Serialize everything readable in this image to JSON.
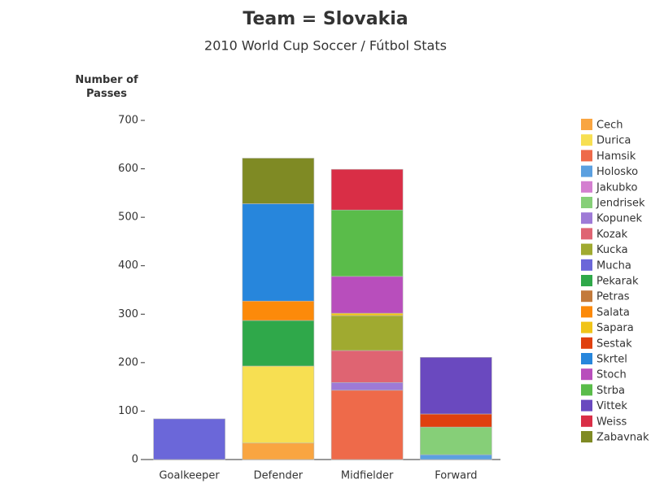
{
  "chart_data": {
    "type": "stacked-bar",
    "title": "Team = Slovakia",
    "subtitle": "2010 World Cup Soccer / Fútbol Stats",
    "y_label": "Number of Passes",
    "categories": [
      "Goalkeeper",
      "Defender",
      "Midfielder",
      "Forward"
    ],
    "ylim": [
      0,
      700
    ],
    "yticks": [
      0,
      100,
      200,
      300,
      400,
      500,
      600,
      700
    ],
    "legend": "right",
    "series": [
      {
        "name": "Cech",
        "color": "#f9a541",
        "values": [
          null,
          34,
          null,
          null
        ]
      },
      {
        "name": "Durica",
        "color": "#f7df52",
        "values": [
          null,
          159,
          null,
          null
        ]
      },
      {
        "name": "Hamsik",
        "color": "#ee6a4a",
        "values": [
          null,
          null,
          143,
          null
        ]
      },
      {
        "name": "Holosko",
        "color": "#5ba0e0",
        "values": [
          null,
          null,
          null,
          10
        ]
      },
      {
        "name": "Jakubko",
        "color": "#d47fd0",
        "values": [
          null,
          null,
          null,
          null
        ]
      },
      {
        "name": "Jendrisek",
        "color": "#86cf78",
        "values": [
          null,
          null,
          null,
          57
        ]
      },
      {
        "name": "Kopunek",
        "color": "#9e7ad6",
        "values": [
          null,
          null,
          16,
          null
        ]
      },
      {
        "name": "Kozak",
        "color": "#df6472",
        "values": [
          null,
          null,
          66,
          null
        ]
      },
      {
        "name": "Kucka",
        "color": "#a0aa30",
        "values": [
          null,
          null,
          72,
          null
        ]
      },
      {
        "name": "Mucha",
        "color": "#6b67d9",
        "values": [
          84,
          null,
          null,
          null
        ]
      },
      {
        "name": "Pekarak",
        "color": "#2fa84a",
        "values": [
          null,
          94,
          null,
          null
        ]
      },
      {
        "name": "Petras",
        "color": "#c37a3b",
        "values": [
          null,
          null,
          null,
          null
        ]
      },
      {
        "name": "Salata",
        "color": "#fc8a0a",
        "values": [
          null,
          40,
          null,
          null
        ]
      },
      {
        "name": "Sapara",
        "color": "#f0c419",
        "values": [
          null,
          null,
          5,
          null
        ]
      },
      {
        "name": "Sestak",
        "color": "#e0400f",
        "values": [
          null,
          null,
          null,
          27
        ]
      },
      {
        "name": "Skrtel",
        "color": "#2786dc",
        "values": [
          null,
          201,
          null,
          null
        ]
      },
      {
        "name": "Stoch",
        "color": "#b84ebc",
        "values": [
          null,
          null,
          76,
          null
        ]
      },
      {
        "name": "Strba",
        "color": "#5abc4a",
        "values": [
          null,
          null,
          137,
          null
        ]
      },
      {
        "name": "Vittek",
        "color": "#6a49bf",
        "values": [
          null,
          null,
          null,
          117
        ]
      },
      {
        "name": "Weiss",
        "color": "#d92e46",
        "values": [
          null,
          null,
          84,
          null
        ]
      },
      {
        "name": "Zabavnak",
        "color": "#7f8a24",
        "values": [
          null,
          94,
          null,
          null
        ]
      }
    ]
  }
}
